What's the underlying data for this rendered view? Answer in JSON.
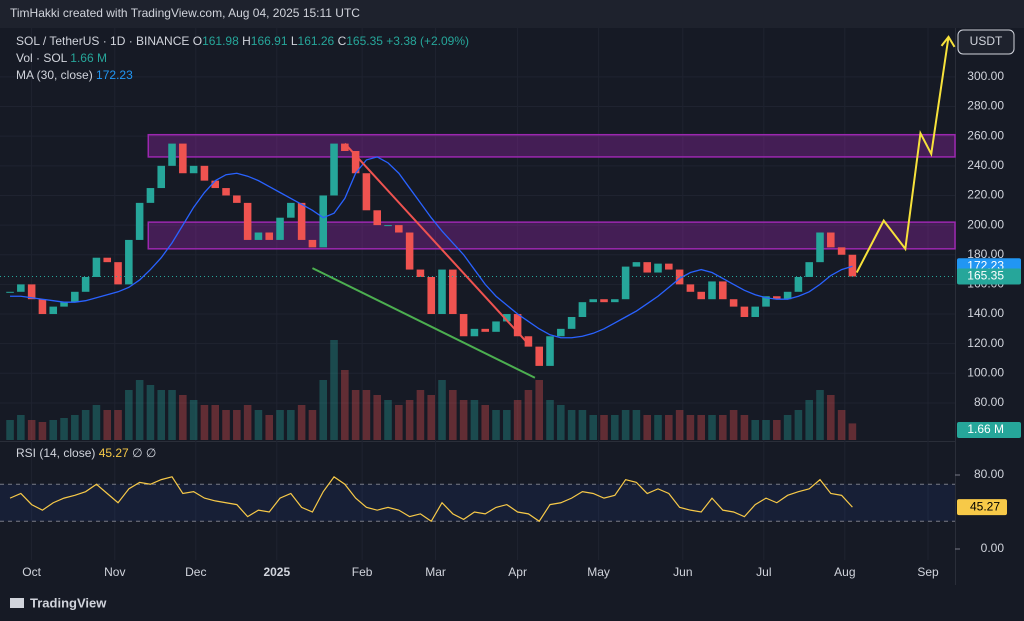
{
  "header": {
    "text": "TimHakki created with TradingView.com, Aug 04, 2025 15:11 UTC"
  },
  "footer": {
    "brand": "TradingView"
  },
  "currency": "USDT",
  "legend": {
    "symbol": "SOL / TetherUS · 1D · BINANCE",
    "ohlc": [
      {
        "label": "O",
        "value": 161.98
      },
      {
        "label": "H",
        "value": 166.91
      },
      {
        "label": "L",
        "value": 161.26
      },
      {
        "label": "C",
        "value": 165.35
      }
    ],
    "change": "+3.38 (+2.09%)",
    "volume_name": "Vol · SOL",
    "volume_value": "1.66 M",
    "ma_name": "MA (30, close)",
    "rsi_name": "RSI (14, close)",
    "rsi_extra": "∅ ∅"
  },
  "chart_data": {
    "type": "candlestick",
    "xlim": [
      -0.93,
      87.5
    ],
    "xticks": [
      {
        "value": 2,
        "label": "Oct"
      },
      {
        "value": 9.7,
        "label": "Nov"
      },
      {
        "value": 17.2,
        "label": "Dec"
      },
      {
        "value": 24.7,
        "label": "2025"
      },
      {
        "value": 32.6,
        "label": "Feb"
      },
      {
        "value": 39.4,
        "label": "Mar"
      },
      {
        "value": 47,
        "label": "Apr"
      },
      {
        "value": 54.5,
        "label": "May"
      },
      {
        "value": 62.3,
        "label": "Jun"
      },
      {
        "value": 69.8,
        "label": "Jul"
      },
      {
        "value": 77.3,
        "label": "Aug"
      },
      {
        "value": 85,
        "label": "Sep"
      }
    ],
    "ylim": [
      55,
      333
    ],
    "yticks": [
      {
        "value": 80,
        "label": "80.00"
      },
      {
        "value": 100,
        "label": "100.00"
      },
      {
        "value": 120,
        "label": "120.00"
      },
      {
        "value": 140,
        "label": "140.00"
      },
      {
        "value": 160,
        "label": "160.00"
      },
      {
        "value": 180,
        "label": "180.00"
      },
      {
        "value": 200,
        "label": "200.00"
      },
      {
        "value": 220,
        "label": "220.00"
      },
      {
        "value": 240,
        "label": "240.00"
      },
      {
        "value": 260,
        "label": "260.00"
      },
      {
        "value": 280,
        "label": "280.00"
      },
      {
        "value": 300,
        "label": "300.00"
      }
    ],
    "up_color": "#26a69a",
    "down_color": "#ef5350",
    "series": [
      {
        "name": "SOL / TetherUS",
        "values": [
          155,
          160,
          150,
          140,
          145,
          148,
          155,
          165,
          178,
          175,
          160,
          190,
          215,
          225,
          240,
          255,
          235,
          240,
          230,
          225,
          220,
          215,
          190,
          195,
          190,
          205,
          215,
          190,
          185,
          220,
          255,
          250,
          235,
          210,
          200,
          200,
          195,
          170,
          165,
          140,
          170,
          140,
          125,
          130,
          128,
          135,
          140,
          125,
          118,
          105,
          125,
          130,
          138,
          148,
          150,
          148,
          150,
          172,
          175,
          168,
          174,
          170,
          160,
          155,
          150,
          162,
          150,
          145,
          138,
          145,
          152,
          150,
          155,
          165,
          175,
          195,
          185,
          180,
          165.35
        ]
      },
      {
        "name": "MA (30, close)",
        "color": "#2962ff",
        "values": [
          152,
          152,
          151,
          150,
          149,
          148,
          148,
          149,
          151,
          153,
          155,
          158,
          163,
          170,
          178,
          188,
          200,
          212,
          222,
          230,
          234,
          235,
          233,
          230,
          226,
          222,
          218,
          214,
          210,
          205,
          208,
          218,
          235,
          244,
          246,
          242,
          235,
          225,
          215,
          205,
          196,
          188,
          180,
          170,
          160,
          152,
          146,
          140,
          135,
          130,
          126,
          124,
          124,
          125,
          127,
          130,
          134,
          138,
          142,
          147,
          152,
          158,
          164,
          168,
          170,
          168,
          164,
          160,
          156,
          153,
          151,
          150,
          150,
          152,
          155,
          160,
          166,
          170,
          172.23
        ]
      }
    ],
    "volume": {
      "ylim": [
        0,
        11
      ],
      "values": [
        2,
        2.5,
        2,
        1.8,
        2,
        2.2,
        2.5,
        3,
        3.5,
        3,
        3,
        5,
        6,
        5.5,
        5,
        5,
        4.5,
        4,
        3.5,
        3.5,
        3,
        3,
        3.5,
        3,
        2.5,
        3,
        3,
        3.5,
        3,
        6,
        10,
        7,
        5,
        5,
        4.5,
        4,
        3.5,
        4,
        5,
        4.5,
        6,
        5,
        4,
        4,
        3.5,
        3,
        3,
        4,
        5,
        6,
        4,
        3.5,
        3,
        3,
        2.5,
        2.5,
        2.5,
        3,
        3,
        2.5,
        2.5,
        2.5,
        3,
        2.5,
        2.5,
        2.5,
        2.5,
        3,
        2.5,
        2,
        2,
        2,
        2.5,
        3,
        4,
        5,
        4.5,
        3,
        1.66
      ]
    },
    "rsi": {
      "color": "#f7c948",
      "ylim": [
        -11.9,
        114.6
      ],
      "yticks": [
        {
          "value": 0,
          "label": "0.00"
        },
        {
          "value": 80,
          "label": "80.00"
        }
      ],
      "bands": [
        30,
        70
      ],
      "values": [
        55,
        60,
        48,
        42,
        50,
        55,
        58,
        62,
        70,
        60,
        50,
        65,
        72,
        70,
        75,
        78,
        60,
        62,
        55,
        52,
        50,
        48,
        35,
        42,
        40,
        55,
        60,
        45,
        40,
        62,
        78,
        70,
        55,
        45,
        42,
        45,
        42,
        35,
        38,
        30,
        50,
        38,
        32,
        40,
        38,
        45,
        48,
        40,
        38,
        30,
        48,
        50,
        55,
        62,
        60,
        55,
        58,
        75,
        72,
        60,
        65,
        60,
        45,
        42,
        40,
        55,
        42,
        40,
        35,
        48,
        55,
        50,
        58,
        62,
        65,
        75,
        60,
        58,
        45.27
      ]
    },
    "zones": [
      {
        "x": [
          12.8,
          87.5
        ],
        "y": [
          246,
          261
        ]
      },
      {
        "x": [
          12.8,
          87.5
        ],
        "y": [
          184,
          202
        ]
      }
    ],
    "trendlines": [
      {
        "color": "#ef5350",
        "x": [
          31,
          48.1
        ],
        "y": [
          255,
          119
        ]
      },
      {
        "color": "#4caf50",
        "x": [
          28,
          48.6
        ],
        "y": [
          171,
          97
        ]
      }
    ],
    "projection": {
      "color": "#f7e23b",
      "x": [
        78.4,
        80.9,
        82.9,
        84.3,
        85.3,
        86.9
      ],
      "y": [
        168,
        203,
        184,
        262,
        248,
        327
      ]
    }
  }
}
